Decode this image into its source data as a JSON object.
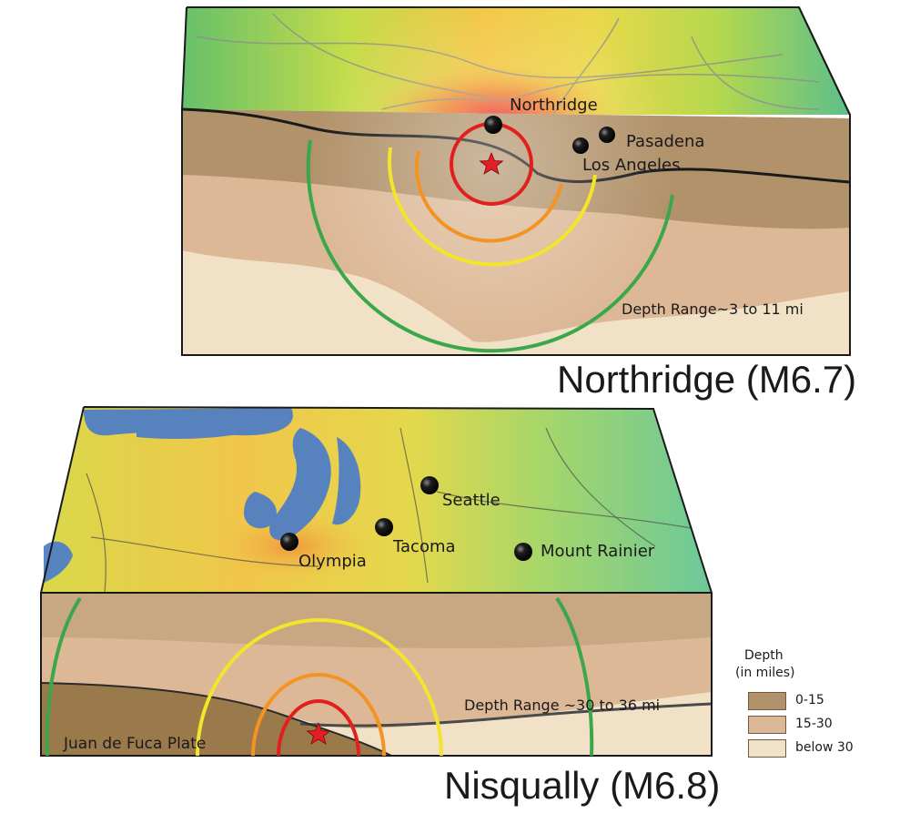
{
  "top_block": {
    "cities": [
      {
        "name": "Northridge"
      },
      {
        "name": "Pasadena"
      },
      {
        "name": "Los Angeles"
      }
    ],
    "depth_range": "Depth Range~3 to 11 mi",
    "caption": "Northridge (M6.7)"
  },
  "bottom_block": {
    "cities": [
      {
        "name": "Seattle"
      },
      {
        "name": "Tacoma"
      },
      {
        "name": "Olympia"
      },
      {
        "name": "Mount Rainier"
      }
    ],
    "depth_range": "Depth Range ~30 to 36 mi",
    "plate_label": "Juan de Fuca Plate",
    "caption": "Nisqually (M6.8)"
  },
  "legend": {
    "title": "Depth",
    "subtitle": "(in miles)",
    "items": [
      {
        "label": "0-15",
        "color": "#b1926a"
      },
      {
        "label": "15-30",
        "color": "#dcb896"
      },
      {
        "label": "below 30",
        "color": "#f1e2c7"
      }
    ]
  },
  "colors": {
    "ring_inner": "#e0201e",
    "ring_2": "#f39422",
    "ring_3": "#f4e52a",
    "ring_outer": "#3aa84a",
    "epicenter_star": "#e31e24",
    "water": "#4f7fc4"
  }
}
